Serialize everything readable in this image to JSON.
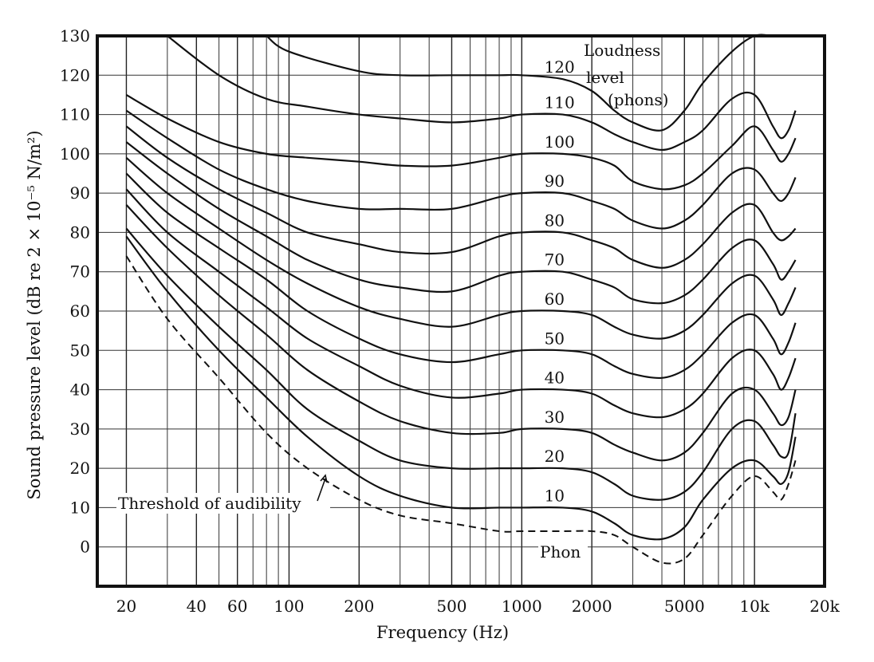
{
  "chart_data": {
    "type": "line",
    "xscale": "log",
    "xlim": [
      15,
      20000
    ],
    "ylim": [
      -10,
      130
    ],
    "grid": true,
    "xlabel": "Frequency (Hz)",
    "ylabel": "Sound pressure level (dB re 2 × 10⁻⁵ N/m²)",
    "x_tick_labels": [
      {
        "v": 20,
        "label": "20"
      },
      {
        "v": 40,
        "label": "40"
      },
      {
        "v": 60,
        "label": "60"
      },
      {
        "v": 100,
        "label": "100"
      },
      {
        "v": 200,
        "label": "200"
      },
      {
        "v": 500,
        "label": "500"
      },
      {
        "v": 1000,
        "label": "1000"
      },
      {
        "v": 2000,
        "label": "2000"
      },
      {
        "v": 5000,
        "label": "5000"
      },
      {
        "v": 10000,
        "label": "10k"
      },
      {
        "v": 20000,
        "label": "20k"
      }
    ],
    "y_ticks": [
      0,
      10,
      20,
      30,
      40,
      50,
      60,
      70,
      80,
      90,
      100,
      110,
      120,
      130
    ],
    "legend_title": [
      "Loudness",
      "level",
      "(phons)"
    ],
    "threshold_label": "Threshold of audibility",
    "bottom_label": "Phon",
    "series": [
      {
        "name": "10",
        "x": [
          20,
          30,
          50,
          80,
          120,
          200,
          300,
          500,
          800,
          1000,
          1500,
          2000,
          2500,
          3000,
          4000,
          5000,
          6000,
          8000,
          10000,
          12000,
          13000,
          14000,
          15000
        ],
        "y": [
          79,
          65,
          50,
          38,
          28,
          18,
          13,
          10,
          10,
          10,
          10,
          9,
          6,
          3,
          2,
          5,
          12,
          20,
          22,
          18,
          16,
          19,
          28
        ]
      },
      {
        "name": "20",
        "x": [
          20,
          30,
          50,
          80,
          120,
          200,
          300,
          500,
          800,
          1000,
          1500,
          2000,
          2500,
          3000,
          4000,
          5000,
          6000,
          8000,
          10000,
          12000,
          13000,
          14000,
          15000
        ],
        "y": [
          81,
          69,
          56,
          45,
          35,
          27,
          22,
          20,
          20,
          20,
          20,
          19,
          16,
          13,
          12,
          14,
          19,
          30,
          32,
          26,
          23,
          24,
          34
        ]
      },
      {
        "name": "30",
        "x": [
          20,
          30,
          50,
          80,
          120,
          200,
          300,
          500,
          800,
          1000,
          1500,
          2000,
          2500,
          3000,
          4000,
          5000,
          6000,
          8000,
          10000,
          12000,
          13000,
          14000,
          15000
        ],
        "y": [
          87,
          76,
          64,
          54,
          45,
          37,
          32,
          29,
          29,
          30,
          30,
          29,
          26,
          24,
          22,
          24,
          29,
          39,
          40,
          34,
          31,
          33,
          40
        ]
      },
      {
        "name": "40",
        "x": [
          20,
          30,
          50,
          80,
          120,
          200,
          300,
          500,
          800,
          1000,
          1500,
          2000,
          2500,
          3000,
          4000,
          5000,
          6000,
          8000,
          10000,
          12000,
          13000,
          14000,
          15000
        ],
        "y": [
          91,
          80,
          70,
          61,
          53,
          46,
          41,
          38,
          39,
          40,
          40,
          39,
          36,
          34,
          33,
          35,
          39,
          48,
          50,
          44,
          40,
          43,
          48
        ]
      },
      {
        "name": "50",
        "x": [
          20,
          30,
          50,
          80,
          120,
          200,
          300,
          500,
          800,
          1000,
          1500,
          2000,
          2500,
          3000,
          4000,
          5000,
          6000,
          8000,
          10000,
          12000,
          13000,
          14000,
          15000
        ],
        "y": [
          95,
          85,
          76,
          68,
          60,
          53,
          49,
          47,
          49,
          50,
          50,
          49,
          46,
          44,
          43,
          45,
          49,
          57,
          59,
          53,
          49,
          52,
          57
        ]
      },
      {
        "name": "60",
        "x": [
          20,
          30,
          50,
          80,
          120,
          200,
          300,
          500,
          800,
          1000,
          1500,
          2000,
          2500,
          3000,
          4000,
          5000,
          6000,
          8000,
          10000,
          12000,
          13000,
          14000,
          15000
        ],
        "y": [
          99,
          90,
          81,
          73,
          67,
          61,
          58,
          56,
          59,
          60,
          60,
          59,
          56,
          54,
          53,
          55,
          59,
          67,
          69,
          63,
          59,
          62,
          66
        ]
      },
      {
        "name": "70",
        "x": [
          20,
          30,
          50,
          80,
          120,
          200,
          300,
          500,
          800,
          1000,
          1500,
          2000,
          2500,
          3000,
          4000,
          5000,
          6000,
          8000,
          10000,
          12000,
          13000,
          14000,
          15000
        ],
        "y": [
          103,
          95,
          86,
          79,
          73,
          68,
          66,
          65,
          69,
          70,
          70,
          68,
          66,
          63,
          62,
          64,
          68,
          76,
          78,
          72,
          68,
          70,
          73
        ]
      },
      {
        "name": "80",
        "x": [
          20,
          30,
          50,
          80,
          120,
          200,
          300,
          500,
          800,
          1000,
          1500,
          2000,
          2500,
          3000,
          4000,
          5000,
          6000,
          8000,
          10000,
          12000,
          13000,
          14000,
          15000
        ],
        "y": [
          107,
          99,
          91,
          85,
          80,
          77,
          75,
          75,
          79,
          80,
          80,
          78,
          76,
          73,
          71,
          73,
          77,
          85,
          87,
          80,
          78,
          79,
          81
        ]
      },
      {
        "name": "90",
        "x": [
          20,
          30,
          50,
          80,
          120,
          200,
          300,
          500,
          800,
          1000,
          1500,
          2000,
          2500,
          3000,
          4000,
          5000,
          6000,
          8000,
          10000,
          12000,
          13000,
          14000,
          15000
        ],
        "y": [
          111,
          104,
          96,
          91,
          88,
          86,
          86,
          86,
          89,
          90,
          90,
          88,
          86,
          83,
          81,
          83,
          87,
          95,
          96,
          90,
          88,
          90,
          94
        ]
      },
      {
        "name": "100",
        "x": [
          20,
          30,
          50,
          80,
          120,
          200,
          300,
          500,
          800,
          1000,
          1500,
          2000,
          2500,
          3000,
          4000,
          5000,
          6000,
          8000,
          10000,
          12000,
          13000,
          14000,
          15000
        ],
        "y": [
          115,
          109,
          103,
          100,
          99,
          98,
          97,
          97,
          99,
          100,
          100,
          99,
          97,
          93,
          91,
          92,
          95,
          102,
          107,
          101,
          98,
          100,
          104
        ]
      },
      {
        "name": "110",
        "x": [
          30,
          50,
          80,
          120,
          200,
          300,
          500,
          800,
          1000,
          1500,
          2000,
          2500,
          3000,
          4000,
          5000,
          6000,
          8000,
          10000,
          12000,
          13000,
          14000,
          15000
        ],
        "y": [
          130,
          120,
          114,
          112,
          110,
          109,
          108,
          109,
          110,
          110,
          108,
          105,
          103,
          101,
          103,
          106,
          114,
          115,
          107,
          104,
          106,
          111
        ]
      },
      {
        "name": "120",
        "x": [
          80,
          100,
          200,
          300,
          500,
          800,
          1000,
          1500,
          2000,
          2500,
          3000,
          4000,
          5000,
          6000,
          8000,
          10000,
          12000,
          13000,
          14000,
          15000
        ],
        "y": [
          130,
          126,
          121,
          120,
          120,
          120,
          120,
          119,
          116,
          111,
          108,
          106,
          111,
          118,
          126,
          130,
          130,
          130,
          130,
          130
        ]
      }
    ],
    "threshold": {
      "name": "Threshold of audibility",
      "x": [
        20,
        30,
        50,
        80,
        120,
        200,
        300,
        500,
        800,
        1000,
        1500,
        2000,
        2500,
        3000,
        4000,
        5000,
        6000,
        8000,
        10000,
        12000,
        13000,
        14000,
        15000
      ],
      "y": [
        74,
        58,
        43,
        29,
        20,
        12,
        8,
        6,
        4,
        4,
        4,
        4,
        3,
        0,
        -4,
        -3,
        3,
        13,
        18,
        14,
        12,
        16,
        22
      ]
    }
  }
}
